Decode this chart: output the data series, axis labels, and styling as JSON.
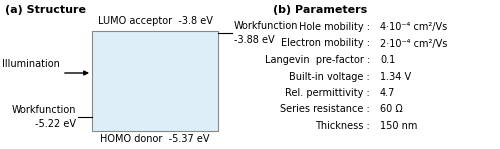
{
  "title_a": "(a) Structure",
  "title_b": "(b) Parameters",
  "box_facecolor": "#ddeef8",
  "box_edgecolor": "#888888",
  "lumo_label": "LUMO acceptor  -3.8 eV",
  "homo_label": "HOMO donor  -5.37 eV",
  "wf_right_line1": "Workfunction",
  "wf_right_line2": "-3.88 eV",
  "wf_left_line1": "Workfunction",
  "wf_left_line2": "-5.22 eV",
  "illumination_label": "Illumination",
  "params_labels": [
    "Hole mobility :",
    "Electron mobility :",
    "Langevin  pre-factor :",
    "Built-in voltage :",
    "Rel. permittivity :",
    "Series resistance :",
    "Thickness :"
  ],
  "params_values": [
    "4·10⁻⁴ cm²/Vs",
    "2·10⁻⁴ cm²/Vs",
    "0.1",
    "1.34 V",
    "4.7",
    "60 Ω",
    "150 nm"
  ],
  "font_size": 7.0,
  "title_font_size": 8.0,
  "background_color": "#ffffff"
}
